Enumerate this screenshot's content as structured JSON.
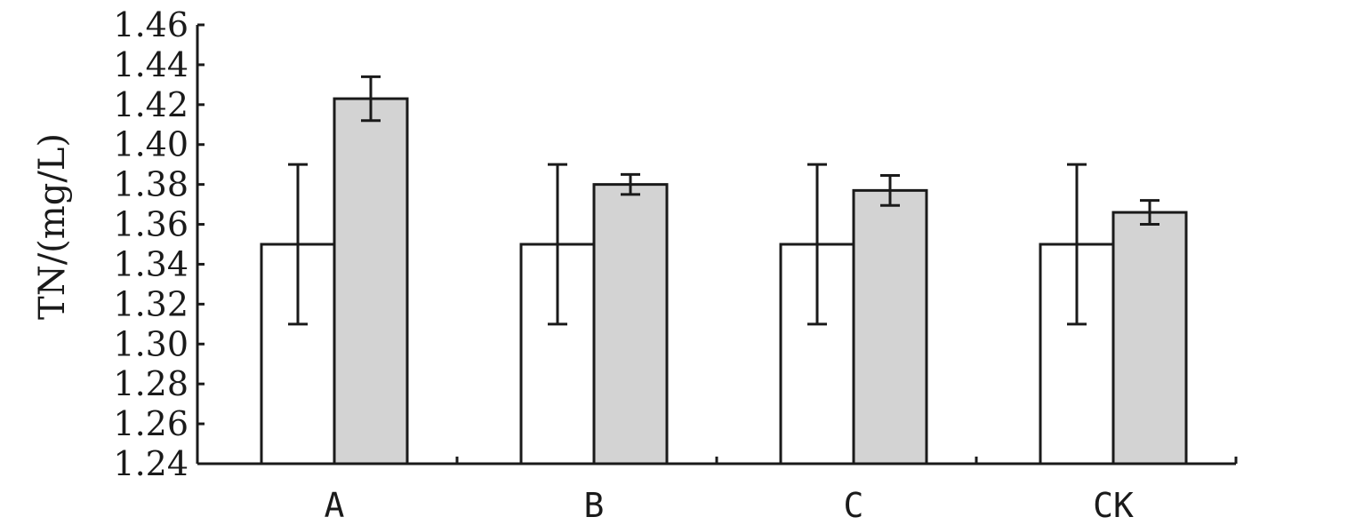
{
  "chart_data": {
    "type": "bar",
    "ylabel": "TN/(mg/L)",
    "xlabel": "",
    "ylim": [
      1.24,
      1.46
    ],
    "yticks": [
      "1.24",
      "1.26",
      "1.28",
      "1.30",
      "1.32",
      "1.34",
      "1.36",
      "1.38",
      "1.40",
      "1.42",
      "1.44",
      "1.46"
    ],
    "categories": [
      "A",
      "B",
      "C",
      "CK"
    ],
    "series": [
      {
        "values": [
          1.35,
          1.35,
          1.35,
          1.35
        ],
        "errors": [
          0.04,
          0.04,
          0.04,
          0.04
        ],
        "color": "#ffffff"
      },
      {
        "values": [
          1.423,
          1.38,
          1.377,
          1.366
        ],
        "errors": [
          0.011,
          0.005,
          0.0075,
          0.006
        ],
        "color": "#d3d3d3"
      }
    ],
    "grid": false,
    "legend": "none"
  }
}
